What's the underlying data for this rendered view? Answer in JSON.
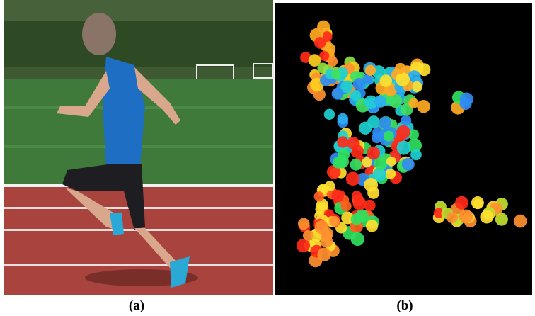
{
  "figure": {
    "captions": [
      "(a)",
      "(b)"
    ]
  }
}
